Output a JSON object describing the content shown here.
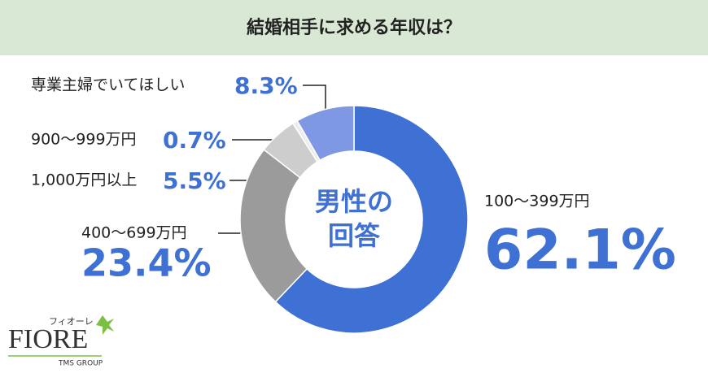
{
  "chart_data": {
    "type": "donut",
    "title": "結婚相手に求める年収は？",
    "center_label": [
      "男性の",
      "回答"
    ],
    "categories": [
      "100～399万円",
      "400～699万円",
      "1,000万円以上",
      "900～999万円",
      "専業主婦でいてほしい"
    ],
    "values": [
      62.1,
      23.4,
      5.5,
      0.7,
      8.3
    ],
    "value_labels": [
      "62.1%",
      "23.4%",
      "5.5%",
      "0.7%",
      "8.3%"
    ],
    "colors": [
      "#3f70d3",
      "#9b9b9b",
      "#cdcdcd",
      "#ececec",
      "#7f98e3"
    ]
  },
  "logo": {
    "kana": "フィオーレ",
    "name": "FIORE",
    "group": "TMS GROUP"
  }
}
